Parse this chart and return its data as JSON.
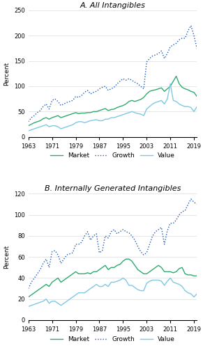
{
  "title_a": "A. All Intangibles",
  "title_b": "B. Internally Generated Intangibles",
  "ylabel": "Percent",
  "years": [
    1963,
    1964,
    1965,
    1966,
    1967,
    1968,
    1969,
    1970,
    1971,
    1972,
    1973,
    1974,
    1975,
    1976,
    1977,
    1978,
    1979,
    1980,
    1981,
    1982,
    1983,
    1984,
    1985,
    1986,
    1987,
    1988,
    1989,
    1990,
    1991,
    1992,
    1993,
    1994,
    1995,
    1996,
    1997,
    1998,
    1999,
    2000,
    2001,
    2002,
    2003,
    2004,
    2005,
    2006,
    2007,
    2008,
    2009,
    2010,
    2011,
    2012,
    2013,
    2014,
    2015,
    2016,
    2017,
    2018,
    2019,
    2020
  ],
  "panel_a": {
    "market": [
      22,
      25,
      28,
      30,
      32,
      36,
      38,
      35,
      38,
      40,
      42,
      38,
      40,
      42,
      44,
      46,
      48,
      46,
      47,
      47,
      48,
      48,
      50,
      50,
      52,
      54,
      56,
      52,
      54,
      55,
      58,
      60,
      62,
      65,
      70,
      72,
      70,
      72,
      74,
      78,
      85,
      90,
      92,
      93,
      95,
      97,
      90,
      95,
      100,
      110,
      120,
      105,
      98,
      95,
      93,
      90,
      88,
      80
    ],
    "growth": [
      30,
      38,
      42,
      48,
      52,
      60,
      65,
      55,
      72,
      75,
      70,
      62,
      65,
      68,
      70,
      72,
      80,
      78,
      82,
      88,
      92,
      85,
      88,
      90,
      95,
      98,
      100,
      92,
      95,
      98,
      105,
      110,
      115,
      112,
      115,
      112,
      108,
      105,
      100,
      95,
      148,
      155,
      160,
      162,
      165,
      170,
      155,
      165,
      178,
      182,
      185,
      192,
      195,
      195,
      210,
      220,
      200,
      175
    ],
    "value": [
      12,
      14,
      16,
      18,
      20,
      22,
      24,
      20,
      22,
      22,
      20,
      16,
      18,
      20,
      22,
      24,
      28,
      30,
      30,
      28,
      30,
      32,
      33,
      34,
      32,
      32,
      35,
      35,
      38,
      38,
      40,
      42,
      44,
      46,
      48,
      50,
      48,
      46,
      45,
      42,
      55,
      60,
      65,
      68,
      70,
      72,
      65,
      75,
      105,
      72,
      70,
      65,
      62,
      60,
      60,
      58,
      50,
      60
    ]
  },
  "panel_b": {
    "market": [
      22,
      24,
      26,
      28,
      30,
      32,
      34,
      32,
      36,
      38,
      40,
      36,
      38,
      40,
      42,
      44,
      46,
      44,
      44,
      44,
      45,
      44,
      46,
      46,
      48,
      50,
      52,
      48,
      50,
      50,
      52,
      53,
      56,
      58,
      58,
      56,
      52,
      48,
      46,
      44,
      44,
      46,
      48,
      50,
      52,
      50,
      46,
      46,
      46,
      45,
      46,
      49,
      50,
      44,
      43,
      43,
      42,
      42
    ],
    "growth": [
      30,
      36,
      40,
      44,
      48,
      54,
      58,
      50,
      65,
      66,
      62,
      54,
      58,
      62,
      63,
      64,
      72,
      72,
      74,
      80,
      84,
      76,
      80,
      82,
      64,
      66,
      80,
      78,
      84,
      86,
      82,
      84,
      86,
      84,
      83,
      80,
      76,
      70,
      65,
      62,
      64,
      72,
      80,
      84,
      86,
      88,
      72,
      85,
      92,
      92,
      95,
      100,
      103,
      104,
      110,
      115,
      112,
      110
    ],
    "value": [
      13,
      14,
      15,
      16,
      17,
      18,
      20,
      16,
      18,
      18,
      16,
      14,
      16,
      18,
      20,
      22,
      24,
      26,
      26,
      26,
      28,
      30,
      32,
      34,
      32,
      32,
      34,
      32,
      36,
      36,
      37,
      38,
      40,
      38,
      33,
      33,
      31,
      29,
      28,
      28,
      35,
      37,
      38,
      38,
      38,
      37,
      33,
      37,
      40,
      36,
      35,
      34,
      32,
      28,
      26,
      25,
      22,
      25
    ]
  },
  "xticks": [
    1963,
    1971,
    1979,
    1987,
    1995,
    2003,
    2011,
    2019
  ],
  "panel_a_ylim": [
    0,
    250
  ],
  "panel_a_yticks": [
    0,
    50,
    100,
    150,
    200,
    250
  ],
  "panel_b_ylim": [
    0,
    120
  ],
  "panel_b_yticks": [
    0,
    20,
    40,
    60,
    80,
    100,
    120
  ],
  "color_market": "#2eaa6e",
  "color_growth": "#1a5ab8",
  "color_value": "#7ec8e3",
  "title_fontsize": 8,
  "label_fontsize": 6.5,
  "tick_fontsize": 6,
  "legend_fontsize": 6.5
}
